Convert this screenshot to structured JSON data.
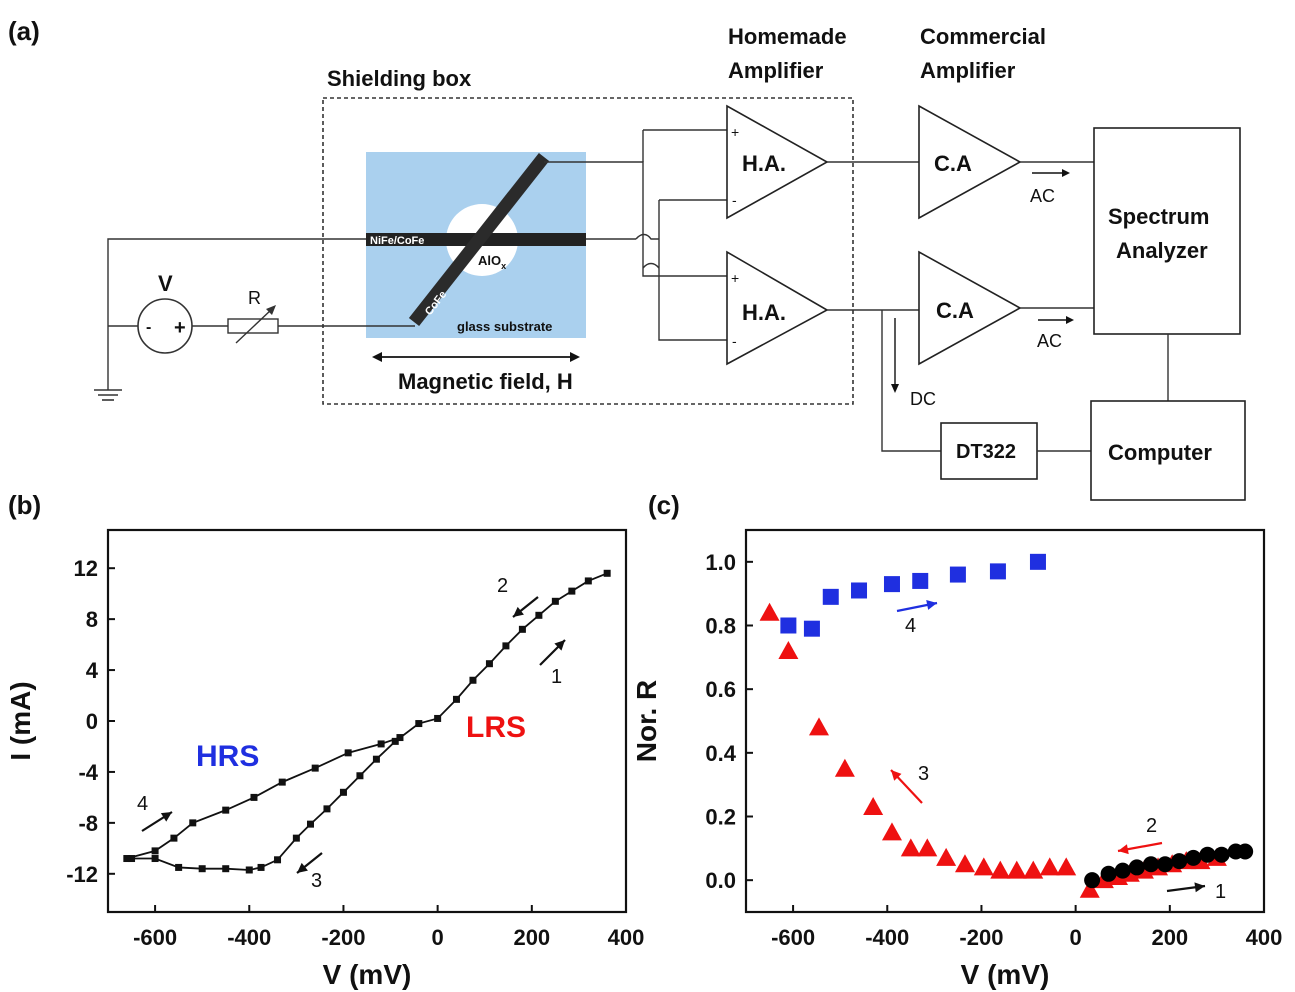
{
  "panels": {
    "a": "(a)",
    "b": "(b)",
    "c": "(c)"
  },
  "schematic": {
    "shielding_box": "Shielding box",
    "homemade_amp_line1": "Homemade",
    "homemade_amp_line2": "Amplifier",
    "commercial_amp_line1": "Commercial",
    "commercial_amp_line2": "Amplifier",
    "ha_label": "H.A.",
    "ca_label": "C.A",
    "spectrum_line1": "Spectrum",
    "spectrum_line2": "Analyzer",
    "computer": "Computer",
    "dt322": "DT322",
    "ac": "AC",
    "dc": "DC",
    "v_source": "V",
    "resistor": "R",
    "nife": "NiFe/CoFe",
    "cofe": "CoFe",
    "alox": "AlO",
    "alox_sub": "x",
    "glass": "glass substrate",
    "magnetic_field": "Magnetic field, H",
    "plus": "+",
    "minus": "-",
    "colors": {
      "substrate": "#aad0ee",
      "hrs": "#1f2fe0",
      "lrs": "#ee1111"
    }
  },
  "chart_data": [
    {
      "type": "line",
      "panel": "(b)",
      "xlabel": "V (mV)",
      "ylabel": "I (mA)",
      "xlim": [
        -700,
        400
      ],
      "ylim": [
        -15,
        15
      ],
      "xticks": [
        -600,
        -400,
        -200,
        0,
        200,
        400
      ],
      "yticks": [
        12,
        8,
        4,
        0,
        -4,
        -8,
        -12
      ],
      "annotations": {
        "hrs": "HRS",
        "lrs": "LRS",
        "n1": "1",
        "n2": "2",
        "n3": "3",
        "n4": "4"
      },
      "series": [
        {
          "name": "",
          "x": [
            -650,
            -600,
            -550,
            -500,
            -450,
            -400,
            -375,
            -340,
            -300,
            -270,
            -235,
            -200,
            -165,
            -130,
            -90,
            -40,
            0,
            40,
            75,
            110,
            145,
            180,
            215,
            250,
            285,
            320,
            360
          ],
          "y": [
            -10.8,
            -10.8,
            -11.5,
            -11.6,
            -11.6,
            -11.7,
            -11.5,
            -10.9,
            -9.2,
            -8.1,
            -6.9,
            -5.6,
            -4.3,
            -3.0,
            -1.6,
            -0.2,
            0.2,
            1.7,
            3.2,
            4.5,
            5.9,
            7.2,
            8.3,
            9.4,
            10.2,
            11.0,
            11.6
          ]
        },
        {
          "name": "",
          "x": [
            -660,
            -600,
            -560,
            -520,
            -450,
            -390,
            -330,
            -260,
            -190,
            -120,
            -80
          ],
          "y": [
            -10.8,
            -10.2,
            -9.2,
            -8.0,
            -7.0,
            -6.0,
            -4.8,
            -3.7,
            -2.5,
            -1.8,
            -1.3
          ]
        }
      ]
    },
    {
      "type": "scatter",
      "panel": "(c)",
      "xlabel": "V (mV)",
      "ylabel": "Nor. R",
      "xlim": [
        -700,
        400
      ],
      "ylim": [
        -0.1,
        1.1
      ],
      "xticks": [
        -600,
        -400,
        -200,
        0,
        200,
        400
      ],
      "yticks": [
        1.0,
        0.8,
        0.6,
        0.4,
        0.2,
        0.0
      ],
      "annotations": {
        "n1": "1",
        "n2": "2",
        "n3": "3",
        "n4": "4"
      },
      "series": [
        {
          "name": "",
          "marker": "square",
          "color": "#1f2fe0",
          "x": [
            -610,
            -560,
            -520,
            -460,
            -390,
            -330,
            -250,
            -165,
            -80
          ],
          "y": [
            0.8,
            0.79,
            0.89,
            0.91,
            0.93,
            0.94,
            0.96,
            0.97,
            1.0
          ]
        },
        {
          "name": "",
          "marker": "triangle",
          "color": "#ee1111",
          "x": [
            -650,
            -610,
            -545,
            -490,
            -430,
            -390,
            -350,
            -315,
            -275,
            -235,
            -195,
            -160,
            -125,
            -90,
            -55,
            -20,
            30,
            60,
            90,
            115,
            145,
            175,
            205,
            235,
            265,
            300
          ],
          "y": [
            0.84,
            0.72,
            0.48,
            0.35,
            0.23,
            0.15,
            0.1,
            0.1,
            0.07,
            0.05,
            0.04,
            0.03,
            0.03,
            0.03,
            0.04,
            0.04,
            -0.03,
            0.0,
            0.01,
            0.02,
            0.03,
            0.04,
            0.05,
            0.06,
            0.06,
            0.07
          ]
        },
        {
          "name": "",
          "marker": "circle",
          "color": "#000000",
          "x": [
            35,
            70,
            100,
            130,
            160,
            190,
            220,
            250,
            280,
            310,
            340,
            360
          ],
          "y": [
            0.0,
            0.02,
            0.03,
            0.04,
            0.05,
            0.05,
            0.06,
            0.07,
            0.08,
            0.08,
            0.09,
            0.09
          ]
        }
      ]
    }
  ]
}
